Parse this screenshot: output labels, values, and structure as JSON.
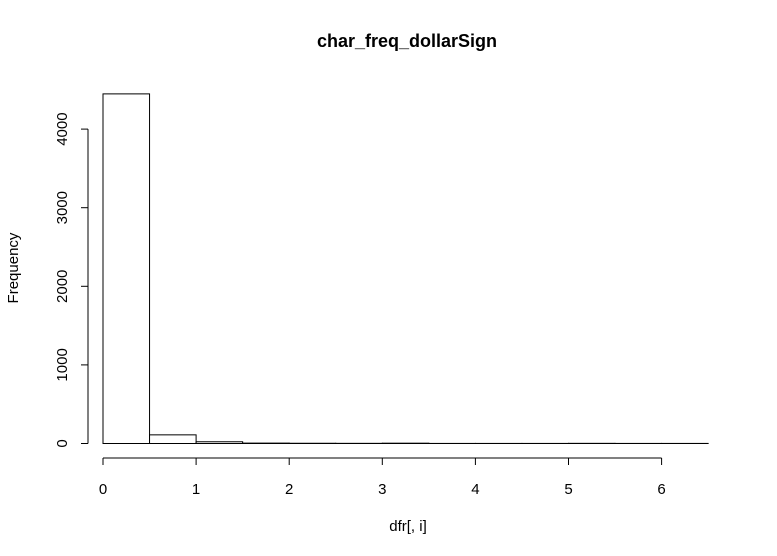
{
  "chart_data": {
    "type": "bar",
    "subtype": "histogram",
    "title": "char_freq_dollarSign",
    "xlabel": "dfr[, i]",
    "ylabel": "Frequency",
    "xlim": [
      0,
      6.5
    ],
    "ylim": [
      0,
      4450
    ],
    "xticks": [
      0,
      1,
      2,
      3,
      4,
      5,
      6
    ],
    "yticks": [
      0,
      1000,
      2000,
      3000,
      4000
    ],
    "bins": [
      {
        "x0": 0.0,
        "x1": 0.5,
        "count": 4448
      },
      {
        "x0": 0.5,
        "x1": 1.0,
        "count": 110
      },
      {
        "x0": 1.0,
        "x1": 1.5,
        "count": 22
      },
      {
        "x0": 1.5,
        "x1": 2.0,
        "count": 5
      },
      {
        "x0": 2.0,
        "x1": 2.5,
        "count": 3
      },
      {
        "x0": 2.5,
        "x1": 3.0,
        "count": 2
      },
      {
        "x0": 3.0,
        "x1": 3.5,
        "count": 4
      },
      {
        "x0": 3.5,
        "x1": 4.0,
        "count": 1
      },
      {
        "x0": 4.0,
        "x1": 4.5,
        "count": 1
      },
      {
        "x0": 4.5,
        "x1": 5.0,
        "count": 1
      },
      {
        "x0": 5.0,
        "x1": 5.5,
        "count": 2
      },
      {
        "x0": 5.5,
        "x1": 6.0,
        "count": 1
      },
      {
        "x0": 6.0,
        "x1": 6.5,
        "count": 1
      }
    ],
    "grid": false,
    "legend": "none"
  }
}
